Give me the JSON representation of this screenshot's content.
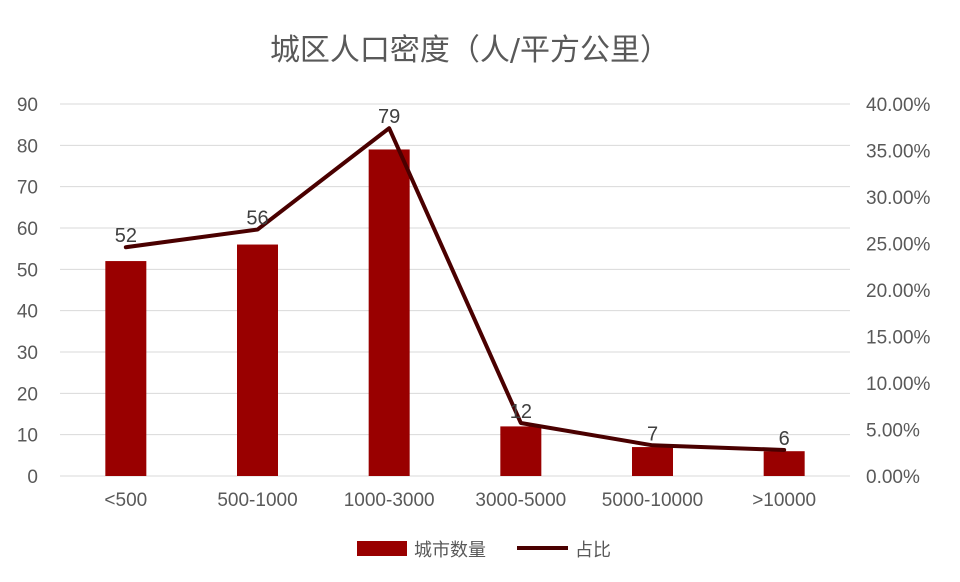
{
  "chart_data": {
    "type": "bar",
    "title": "城区人口密度（人/平方公里）",
    "categories": [
      "<500",
      "500-1000",
      "1000-3000",
      "3000-5000",
      "5000-10000",
      ">10000"
    ],
    "series": [
      {
        "name": "城市数量",
        "type": "bar",
        "axis": "left",
        "values": [
          52,
          56,
          79,
          12,
          7,
          6
        ],
        "data_labels": [
          "52",
          "56",
          "79",
          "12",
          "7",
          "6"
        ],
        "color": "#990000"
      },
      {
        "name": "占比",
        "type": "line",
        "axis": "right",
        "values": [
          24.6,
          26.5,
          37.4,
          5.7,
          3.3,
          2.8
        ],
        "color": "#4a0000"
      }
    ],
    "y_left": {
      "min": 0,
      "max": 90,
      "step": 10,
      "ticks": [
        "0",
        "10",
        "20",
        "30",
        "40",
        "50",
        "60",
        "70",
        "80",
        "90"
      ]
    },
    "y_right": {
      "min": 0,
      "max": 40,
      "step": 5,
      "ticks": [
        "0.00%",
        "5.00%",
        "10.00%",
        "15.00%",
        "20.00%",
        "25.00%",
        "30.00%",
        "35.00%",
        "40.00%"
      ]
    },
    "grid": true,
    "legend_position": "bottom"
  }
}
